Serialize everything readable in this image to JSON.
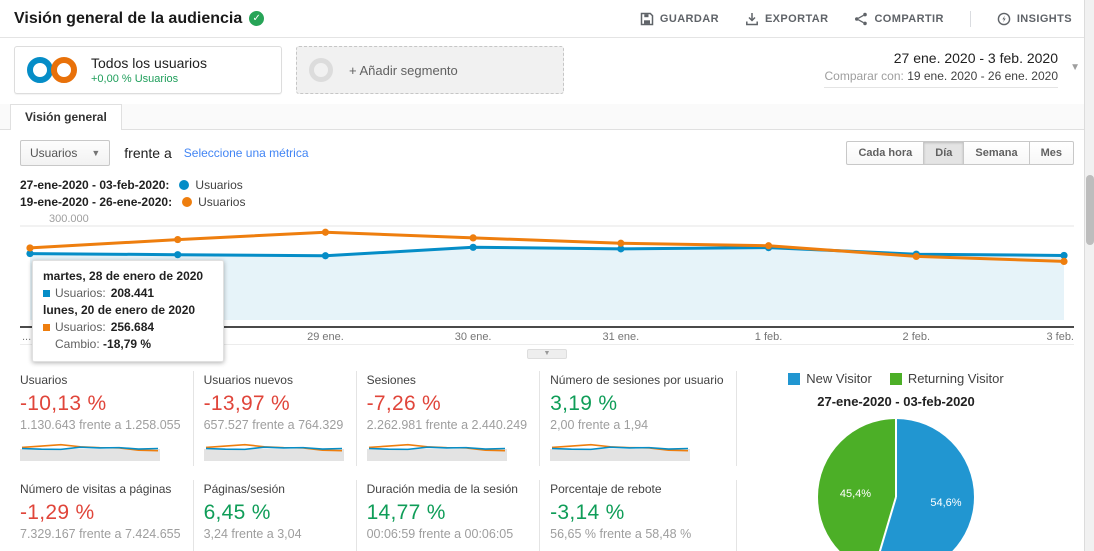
{
  "header": {
    "title": "Visión general de la audiencia",
    "actions": [
      {
        "label": "GUARDAR",
        "icon": "save-icon"
      },
      {
        "label": "EXPORTAR",
        "icon": "export-icon"
      },
      {
        "label": "COMPARTIR",
        "icon": "share-icon"
      },
      {
        "label": "INSIGHTS",
        "icon": "insights-icon"
      }
    ]
  },
  "segments": {
    "all_users": {
      "title": "Todos los usuarios",
      "subtitle": "+0,00 % Usuarios"
    },
    "add_segment_label": "+ Añadir segmento"
  },
  "date_picker": {
    "range": "27 ene. 2020 - 3 feb. 2020",
    "compare_label": "Comparar con:",
    "compare_value": "19 ene. 2020 - 26 ene. 2020"
  },
  "tabs": [
    {
      "label": "Visión general",
      "active": true
    }
  ],
  "controls": {
    "metric_dropdown": "Usuarios",
    "vs_label": "frente a",
    "select_metric": "Seleccione una métrica",
    "granularity": [
      "Cada hora",
      "Día",
      "Semana",
      "Mes"
    ],
    "granularity_active": "Día"
  },
  "chart_data": [
    {
      "type": "line",
      "ylim": [
        0,
        300000
      ],
      "ytick_label": "300.000",
      "x_labels": [
        "...",
        "28 ene.",
        "29 ene.",
        "30 ene.",
        "31 ene.",
        "1 feb.",
        "2 feb.",
        "3 feb."
      ],
      "legend": [
        {
          "period": "27-ene-2020 - 03-feb-2020:",
          "name": "Usuarios",
          "color": "#058dc7"
        },
        {
          "period": "19-ene-2020 - 26-ene-2020:",
          "name": "Usuarios",
          "color": "#ee7e0e"
        }
      ],
      "series": [
        {
          "name": "Usuarios",
          "period": "27-ene-2020 - 03-feb-2020",
          "color": "#058dc7",
          "values": [
            212000,
            208441,
            205000,
            232000,
            227000,
            231000,
            210000,
            206000
          ]
        },
        {
          "name": "Usuarios",
          "period": "19-ene-2020 - 26-ene-2020",
          "color": "#ee7e0e",
          "values": [
            230000,
            256684,
            280000,
            262000,
            245000,
            237000,
            203000,
            187000
          ]
        }
      ]
    },
    {
      "type": "pie",
      "title": "27-ene-2020 - 03-feb-2020",
      "labels": [
        "New Visitor",
        "Returning Visitor"
      ],
      "values": [
        54.6,
        45.4
      ],
      "value_labels": [
        "54,6%",
        "45,4%"
      ],
      "colors": [
        "#2196d1",
        "#4caf27"
      ],
      "legend_position": "top"
    }
  ],
  "tooltip": {
    "groups": [
      {
        "date": "martes, 28 de enero de 2020",
        "label": "Usuarios:",
        "value": "208.441",
        "color": "#058dc7"
      },
      {
        "date": "lunes, 20 de enero de 2020",
        "label": "Usuarios:",
        "value": "256.684",
        "color": "#ee7e0e"
      }
    ],
    "change_label": "Cambio:",
    "change_value": "-18,79 %"
  },
  "metrics": {
    "cards": [
      {
        "label": "Usuarios",
        "delta": "-10,13 %",
        "positive": false,
        "compare": "1.130.643 frente a 1.258.055"
      },
      {
        "label": "Usuarios nuevos",
        "delta": "-13,97 %",
        "positive": false,
        "compare": "657.527 frente a 764.329"
      },
      {
        "label": "Sesiones",
        "delta": "-7,26 %",
        "positive": false,
        "compare": "2.262.981 frente a 2.440.249"
      },
      {
        "label": "Número de sesiones por usuario",
        "delta": "3,19 %",
        "positive": true,
        "compare": "2,00 frente a 1,94"
      },
      {
        "label": "Número de visitas a páginas",
        "delta": "-1,29 %",
        "positive": false,
        "compare": "7.329.167 frente a 7.424.655"
      },
      {
        "label": "Páginas/sesión",
        "delta": "6,45 %",
        "positive": true,
        "compare": "3,24 frente a 3,04"
      },
      {
        "label": "Duración media de la sesión",
        "delta": "14,77 %",
        "positive": true,
        "compare": "00:06:59 frente a 00:06:05"
      },
      {
        "label": "Porcentaje de rebote",
        "delta": "-3,14 %",
        "positive": true,
        "compare": "56,65 % frente a 58,48 %"
      }
    ],
    "sparkline": {
      "blue": [
        0.5,
        0.44,
        0.42,
        0.62,
        0.55,
        0.58,
        0.45,
        0.5
      ],
      "orange": [
        0.6,
        0.72,
        0.85,
        0.66,
        0.58,
        0.55,
        0.35,
        0.3
      ]
    }
  },
  "colors": {
    "blue": "#058dc7",
    "orange": "#ee7e0e",
    "negative": "#e0453a",
    "positive": "#0f9d58"
  }
}
